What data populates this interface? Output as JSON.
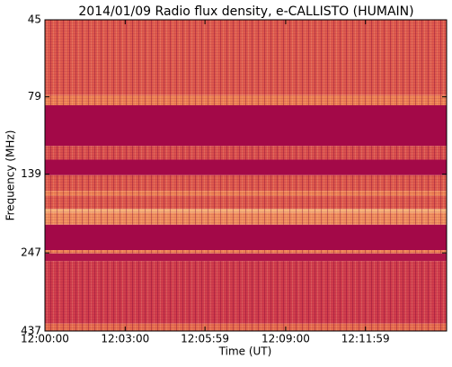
{
  "chart_data": {
    "type": "spectrogram",
    "title": "2014/01/09  Radio flux density, e-CALLISTO (HUMAIN)",
    "x_label": "Time (UT)",
    "y_label": "Frequency (MHz)",
    "xlim": [
      "12:00:00",
      "12:15:01"
    ],
    "xticks": [
      "12:00:00",
      "12:03:00",
      "12:05:59",
      "12:09:00",
      "12:11:59"
    ],
    "ylim": [
      437,
      45
    ],
    "yticks": [
      45,
      79,
      139,
      247,
      437
    ],
    "y_log": true,
    "colormap": [
      "#9b0047",
      "#cf3a4c",
      "#ec7a4e",
      "#fbc98a"
    ],
    "bands": [
      {
        "from": 45,
        "to": 78,
        "level": 0.5
      },
      {
        "from": 78,
        "to": 84,
        "level": 0.7
      },
      {
        "from": 84,
        "to": 113,
        "level": 0.05
      },
      {
        "from": 113,
        "to": 125,
        "level": 0.45
      },
      {
        "from": 125,
        "to": 140,
        "level": 0.05
      },
      {
        "from": 140,
        "to": 157,
        "level": 0.5
      },
      {
        "from": 157,
        "to": 163,
        "level": 0.7
      },
      {
        "from": 163,
        "to": 179,
        "level": 0.5
      },
      {
        "from": 179,
        "to": 184,
        "level": 0.9
      },
      {
        "from": 184,
        "to": 201,
        "level": 0.75
      },
      {
        "from": 201,
        "to": 242,
        "level": 0.05
      },
      {
        "from": 242,
        "to": 248,
        "level": 0.7
      },
      {
        "from": 248,
        "to": 262,
        "level": 0.12
      },
      {
        "from": 262,
        "to": 414,
        "level": 0.35
      },
      {
        "from": 414,
        "to": 437,
        "level": 0.6
      }
    ]
  }
}
